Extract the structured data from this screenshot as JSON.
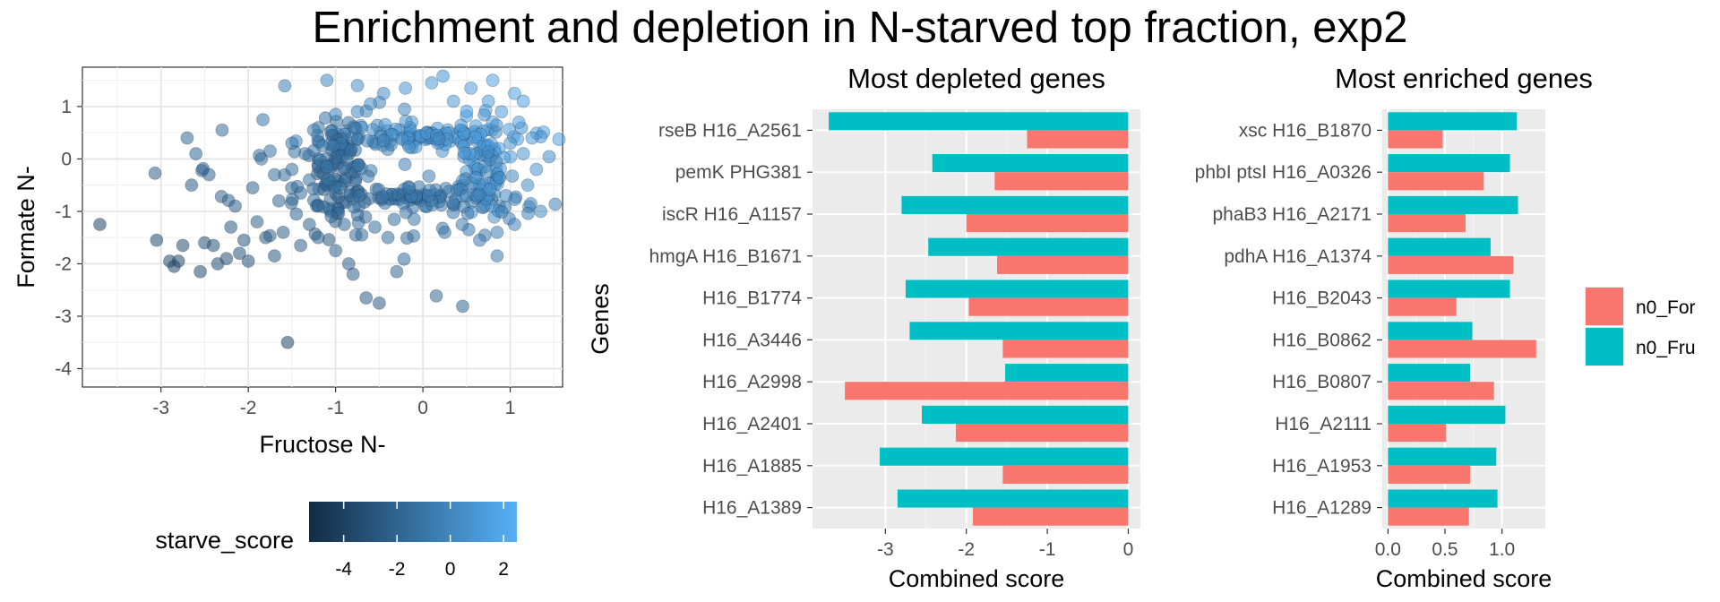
{
  "figure_title": "Enrichment and depletion in N-starved top fraction, exp2",
  "chart_data": [
    {
      "type": "scatter",
      "xlabel": "Fructose N-",
      "ylabel": "Formate N-",
      "xlim": [
        -3.9,
        1.6
      ],
      "ylim": [
        -4.35,
        1.75
      ],
      "xticks": [
        -3,
        -2,
        -1,
        0,
        1
      ],
      "yticks": [
        -4,
        -3,
        -2,
        -1,
        0,
        1
      ],
      "color_legend": {
        "title": "starve_score",
        "range": [
          -5.3,
          2.5
        ],
        "ticks": [
          -4,
          -2,
          0,
          2
        ],
        "low_color": "#132b43",
        "high_color": "#56b1f7"
      },
      "points": [
        [
          -3.7,
          -1.25
        ],
        [
          -3.05,
          -1.55
        ],
        [
          -2.9,
          -1.95
        ],
        [
          -2.85,
          -2.05
        ],
        [
          -2.8,
          -1.95
        ],
        [
          -2.75,
          -1.65
        ],
        [
          -2.7,
          0.4
        ],
        [
          -2.65,
          -0.5
        ],
        [
          -2.6,
          0.1
        ],
        [
          -2.55,
          -2.15
        ],
        [
          -2.5,
          -1.6
        ],
        [
          -2.45,
          -0.3
        ],
        [
          -2.4,
          -1.65
        ],
        [
          -2.35,
          -2.0
        ],
        [
          -2.3,
          0.55
        ],
        [
          -2.25,
          -1.9
        ],
        [
          -2.2,
          -1.3
        ],
        [
          -2.15,
          -0.9
        ],
        [
          -2.1,
          -1.8
        ],
        [
          -2.05,
          -1.55
        ],
        [
          -2.0,
          -1.95
        ],
        [
          -1.95,
          -0.55
        ],
        [
          -1.9,
          -1.2
        ],
        [
          -1.85,
          0.0
        ],
        [
          -1.8,
          -1.5
        ],
        [
          -1.75,
          0.15
        ],
        [
          -1.7,
          -0.3
        ],
        [
          -1.7,
          -1.85
        ],
        [
          -1.65,
          -0.8
        ],
        [
          -1.6,
          -1.4
        ],
        [
          -1.55,
          -3.5
        ],
        [
          -1.5,
          -0.2
        ],
        [
          -1.5,
          0.3
        ],
        [
          -1.45,
          -1.05
        ],
        [
          -1.4,
          -0.65
        ],
        [
          -1.4,
          -1.65
        ],
        [
          -1.35,
          0.1
        ],
        [
          -1.3,
          -0.4
        ],
        [
          -1.3,
          -1.25
        ],
        [
          -1.25,
          0.55
        ],
        [
          -1.2,
          -0.9
        ],
        [
          -1.2,
          -1.5
        ],
        [
          -1.15,
          0.25
        ],
        [
          -1.1,
          -0.15
        ],
        [
          -1.1,
          1.5
        ],
        [
          -1.05,
          -1.1
        ],
        [
          -1.0,
          0.85
        ],
        [
          -1.0,
          -1.75
        ],
        [
          -0.95,
          -0.55
        ],
        [
          -0.9,
          -1.25
        ],
        [
          -0.85,
          -2.0
        ],
        [
          -0.8,
          -2.2
        ],
        [
          -0.75,
          1.4
        ],
        [
          -0.7,
          -1.45
        ],
        [
          -0.65,
          -2.65
        ],
        [
          -0.6,
          1.05
        ],
        [
          -0.55,
          -1.3
        ],
        [
          -0.5,
          -2.75
        ],
        [
          -0.45,
          1.25
        ],
        [
          -0.4,
          -1.5
        ],
        [
          -0.3,
          -2.15
        ],
        [
          -0.2,
          1.35
        ],
        [
          -0.1,
          -1.15
        ],
        [
          0.1,
          1.45
        ],
        [
          0.25,
          -1.4
        ],
        [
          0.35,
          1.1
        ],
        [
          0.45,
          -1.25
        ],
        [
          0.55,
          1.35
        ],
        [
          0.65,
          -1.55
        ],
        [
          0.75,
          1.1
        ],
        [
          0.8,
          1.5
        ],
        [
          0.85,
          -1.4
        ],
        [
          0.9,
          0.9
        ],
        [
          0.95,
          -0.7
        ],
        [
          1.0,
          0.3
        ],
        [
          1.05,
          -1.25
        ],
        [
          1.1,
          0.7
        ],
        [
          1.15,
          0.1
        ],
        [
          1.2,
          -0.5
        ],
        [
          1.25,
          0.4
        ],
        [
          1.3,
          -0.2
        ],
        [
          1.35,
          -1.0
        ],
        [
          0.85,
          -1.85
        ],
        [
          1.05,
          1.25
        ],
        [
          0.6,
          -0.35
        ],
        [
          -0.45,
          0.35
        ],
        [
          -0.75,
          0.9
        ],
        [
          1.15,
          1.1
        ]
      ],
      "clusters": [
        {
          "cx": 0.0,
          "cy": 0.45,
          "sx": 0.55,
          "sy": 0.12,
          "n": 95,
          "color": 0.5
        },
        {
          "cx": 0.0,
          "cy": -0.75,
          "sx": 0.55,
          "sy": 0.13,
          "n": 85,
          "color": -0.5
        },
        {
          "cx": -0.95,
          "cy": -0.15,
          "sx": 0.15,
          "sy": 0.45,
          "n": 80,
          "color": -1.0
        },
        {
          "cx": 0.65,
          "cy": -0.15,
          "sx": 0.13,
          "sy": 0.45,
          "n": 80,
          "color": 0.7
        },
        {
          "cx": -0.4,
          "cy": -0.3,
          "sx": 1.2,
          "sy": 0.75,
          "n": 90,
          "color": -0.3
        }
      ]
    },
    {
      "type": "bar",
      "subtitle": "Most depleted genes",
      "xlabel": "Combined score",
      "ylabel": "Genes",
      "xlim": [
        -3.9,
        0.15
      ],
      "xticks": [
        -3,
        -2,
        -1,
        0
      ],
      "categories": [
        "rseB H16_A2561",
        "pemK PHG381",
        "iscR H16_A1157",
        "hmgA H16_B1671",
        "H16_B1774",
        "H16_A3446",
        "H16_A2998",
        "H16_A2401",
        "H16_A1885",
        "H16_A1389"
      ],
      "series": [
        {
          "name": "n0_For",
          "color": "#f8766d",
          "values": [
            -1.25,
            -1.65,
            -2.0,
            -1.62,
            -1.97,
            -1.55,
            -3.5,
            -2.13,
            -1.55,
            -1.92
          ]
        },
        {
          "name": "n0_Fru",
          "color": "#00bfc4",
          "values": [
            -3.7,
            -2.42,
            -2.8,
            -2.47,
            -2.75,
            -2.7,
            -1.52,
            -2.55,
            -3.07,
            -2.85
          ]
        }
      ]
    },
    {
      "type": "bar",
      "subtitle": "Most enriched genes",
      "xlabel": "Combined score",
      "xlim": [
        -0.05,
        1.38
      ],
      "xticks": [
        0.0,
        0.5,
        1.0
      ],
      "xtick_labels": [
        "0.0",
        "0.5",
        "1.0"
      ],
      "categories": [
        "xsc H16_B1870",
        "phbI ptsI H16_A0326",
        "phaB3 H16_A2171",
        "pdhA H16_A1374",
        "H16_B2043",
        "H16_B0862",
        "H16_B0807",
        "H16_A2111",
        "H16_A1953",
        "H16_A1289"
      ],
      "series": [
        {
          "name": "n0_For",
          "color": "#f8766d",
          "values": [
            0.48,
            0.84,
            0.68,
            1.1,
            0.6,
            1.3,
            0.93,
            0.51,
            0.72,
            0.71
          ]
        },
        {
          "name": "n0_Fru",
          "color": "#00bfc4",
          "values": [
            1.13,
            1.07,
            1.14,
            0.9,
            1.07,
            0.74,
            0.72,
            1.03,
            0.95,
            0.96
          ]
        }
      ]
    }
  ],
  "legend": {
    "items": [
      "n0_For",
      "n0_Fru"
    ]
  }
}
